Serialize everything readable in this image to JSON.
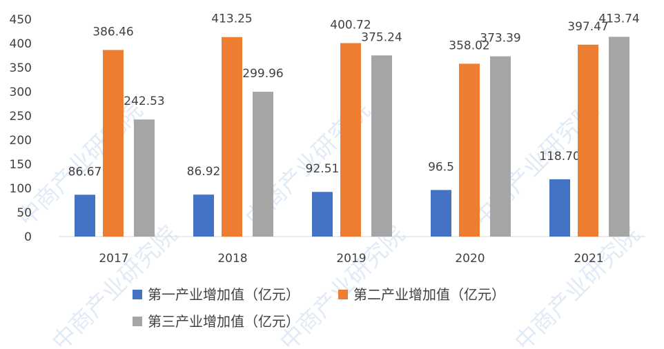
{
  "watermark": "中商产业研究院",
  "chart_data": {
    "type": "bar",
    "categories": [
      "2017",
      "2018",
      "2019",
      "2020",
      "2021"
    ],
    "series": [
      {
        "name": "第一产业增加值（亿元）",
        "values": [
          86.67,
          86.92,
          92.51,
          96.5,
          118.7
        ],
        "labels": [
          "86.67",
          "86.92",
          "92.51",
          "96.5",
          "118.70"
        ]
      },
      {
        "name": "第二产业增加值（亿元）",
        "values": [
          386.46,
          413.25,
          400.72,
          358.02,
          397.47
        ],
        "labels": [
          "386.46",
          "413.25",
          "400.72",
          "358.02",
          "397.47"
        ]
      },
      {
        "name": "第三产业增加值（亿元）",
        "values": [
          242.53,
          299.96,
          375.24,
          373.39,
          413.74
        ],
        "labels": [
          "242.53",
          "299.96",
          "375.24",
          "373.39",
          "413.74"
        ]
      }
    ],
    "colors": [
      "#4472C4",
      "#ED7D31",
      "#A5A5A5"
    ],
    "yticks": [
      0,
      50,
      100,
      150,
      200,
      250,
      300,
      350,
      400,
      450
    ],
    "ylim": [
      0,
      450
    ],
    "grid": false,
    "legend_position": "bottom"
  }
}
